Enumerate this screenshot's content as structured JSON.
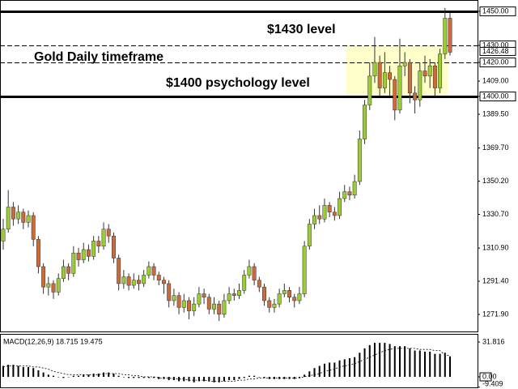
{
  "chart_data": [
    {
      "type": "candlestick",
      "open": [
        1315,
        1322,
        1335,
        1328,
        1332,
        1326,
        1330,
        1316,
        1300,
        1288,
        1290,
        1285,
        1293,
        1300,
        1296,
        1308,
        1304,
        1310,
        1306,
        1315,
        1312,
        1322,
        1318,
        1305,
        1290,
        1294,
        1289,
        1292,
        1290,
        1295,
        1300,
        1295,
        1292,
        1290,
        1280,
        1283,
        1276,
        1280,
        1274,
        1278,
        1284,
        1282,
        1275,
        1278,
        1272,
        1280,
        1284,
        1283,
        1286,
        1295,
        1300,
        1292,
        1288,
        1280,
        1276,
        1278,
        1284,
        1286,
        1282,
        1280,
        1284,
        1312,
        1325,
        1330,
        1328,
        1336,
        1332,
        1330,
        1340,
        1344,
        1342,
        1350,
        1375,
        1395,
        1412,
        1420,
        1405,
        1414,
        1410,
        1392,
        1418,
        1420,
        1402,
        1398,
        1415,
        1412,
        1418,
        1405,
        1425,
        1446
      ],
      "high": [
        1328,
        1345,
        1338,
        1336,
        1334,
        1333,
        1332,
        1318,
        1302,
        1294,
        1292,
        1296,
        1304,
        1302,
        1312,
        1311,
        1314,
        1313,
        1318,
        1318,
        1326,
        1325,
        1320,
        1307,
        1298,
        1296,
        1296,
        1295,
        1298,
        1303,
        1302,
        1297,
        1294,
        1292,
        1287,
        1285,
        1284,
        1282,
        1282,
        1288,
        1287,
        1284,
        1282,
        1280,
        1284,
        1288,
        1287,
        1290,
        1298,
        1304,
        1302,
        1294,
        1290,
        1282,
        1281,
        1287,
        1290,
        1288,
        1284,
        1288,
        1315,
        1328,
        1334,
        1336,
        1340,
        1338,
        1335,
        1344,
        1348,
        1347,
        1354,
        1380,
        1398,
        1420,
        1435,
        1424,
        1426,
        1418,
        1412,
        1434,
        1426,
        1422,
        1406,
        1420,
        1424,
        1422,
        1420,
        1428,
        1452,
        1449
      ],
      "low": [
        1310,
        1320,
        1324,
        1325,
        1322,
        1323,
        1312,
        1296,
        1284,
        1283,
        1281,
        1283,
        1291,
        1292,
        1294,
        1300,
        1302,
        1303,
        1304,
        1308,
        1310,
        1314,
        1302,
        1286,
        1287,
        1286,
        1287,
        1286,
        1288,
        1293,
        1292,
        1289,
        1284,
        1276,
        1277,
        1272,
        1273,
        1269,
        1271,
        1276,
        1278,
        1272,
        1272,
        1268,
        1270,
        1278,
        1280,
        1281,
        1284,
        1293,
        1289,
        1285,
        1277,
        1273,
        1273,
        1276,
        1282,
        1279,
        1276,
        1278,
        1282,
        1310,
        1322,
        1325,
        1326,
        1329,
        1327,
        1328,
        1338,
        1339,
        1340,
        1348,
        1372,
        1392,
        1408,
        1400,
        1402,
        1400,
        1386,
        1390,
        1412,
        1396,
        1390,
        1394,
        1408,
        1405,
        1400,
        1402,
        1422,
        1424
      ],
      "close": [
        1322,
        1335,
        1328,
        1332,
        1326,
        1330,
        1316,
        1300,
        1288,
        1290,
        1285,
        1293,
        1300,
        1296,
        1308,
        1304,
        1310,
        1306,
        1315,
        1312,
        1322,
        1318,
        1305,
        1290,
        1294,
        1289,
        1292,
        1290,
        1295,
        1300,
        1295,
        1292,
        1290,
        1280,
        1283,
        1276,
        1280,
        1274,
        1278,
        1284,
        1282,
        1275,
        1278,
        1272,
        1280,
        1284,
        1283,
        1286,
        1295,
        1300,
        1292,
        1288,
        1280,
        1276,
        1278,
        1284,
        1286,
        1282,
        1280,
        1284,
        1312,
        1325,
        1330,
        1328,
        1336,
        1332,
        1330,
        1340,
        1344,
        1342,
        1350,
        1375,
        1395,
        1412,
        1420,
        1405,
        1414,
        1410,
        1392,
        1418,
        1420,
        1402,
        1398,
        1415,
        1412,
        1418,
        1405,
        1425,
        1446,
        1426
      ],
      "up_color": "#9acd32",
      "down_color": "#cd6a3a",
      "wick_color": "#333333",
      "ylim": [
        1261.4,
        1456.7
      ],
      "yticks": [
        {
          "value": 1450,
          "label": "1450.00"
        },
        {
          "value": 1430,
          "label": "1430.00"
        },
        {
          "value": 1420,
          "label": "1420.00"
        },
        {
          "value": 1409,
          "label": "1409.00"
        },
        {
          "value": 1400,
          "label": "1400.00"
        },
        {
          "value": 1389.5,
          "label": "1389.50"
        },
        {
          "value": 1369.7,
          "label": "1369.70"
        },
        {
          "value": 1350.2,
          "label": "1350.20"
        },
        {
          "value": 1330.7,
          "label": "1330.70"
        },
        {
          "value": 1310.9,
          "label": "1310.90"
        },
        {
          "value": 1291.4,
          "label": "1291.40"
        },
        {
          "value": 1271.9,
          "label": "1271.90"
        }
      ],
      "last_price": {
        "value": 1426.48,
        "label": "1426.48"
      },
      "levels": [
        {
          "value": 1450,
          "style": "solid"
        },
        {
          "value": 1430,
          "style": "dashed"
        },
        {
          "value": 1420,
          "style": "dashed"
        },
        {
          "value": 1400,
          "style": "solid"
        }
      ],
      "zone": {
        "low": 1400,
        "high": 1430,
        "color": "#ffffcc"
      },
      "annotations": [
        "$1430 level",
        "Gold Daily timeframe",
        "$1400 psychology level"
      ]
    },
    {
      "type": "macd",
      "title": "MACD(12,26,9) 18.715 19.475",
      "histogram": [
        10,
        11,
        11,
        10,
        9,
        9,
        8,
        6,
        4,
        2,
        1,
        0,
        -1,
        0,
        1,
        1,
        2,
        2,
        3,
        3,
        4,
        4,
        3,
        1,
        0,
        -1,
        -1,
        -1,
        -1,
        -1,
        -1,
        -2,
        -2,
        -3,
        -3,
        -4,
        -4,
        -4,
        -5,
        -4,
        -4,
        -4,
        -5,
        -5,
        -4,
        -3,
        -3,
        -2,
        -1,
        1,
        1,
        0,
        -1,
        -2,
        -2,
        -2,
        -2,
        -2,
        -2,
        -1,
        2,
        5,
        8,
        10,
        12,
        13,
        13,
        15,
        16,
        17,
        18,
        22,
        26,
        29,
        31,
        31,
        31,
        30,
        28,
        28,
        28,
        26,
        24,
        24,
        23,
        23,
        21,
        21,
        22,
        18.715
      ],
      "signal": [
        9,
        10,
        10,
        10,
        10,
        10,
        9,
        9,
        8,
        7,
        5,
        4,
        3,
        2,
        2,
        2,
        2,
        2,
        2,
        2,
        3,
        3,
        3,
        3,
        2,
        2,
        1,
        1,
        0,
        0,
        0,
        -1,
        -1,
        -1,
        -2,
        -2,
        -2,
        -3,
        -3,
        -3,
        -3,
        -4,
        -4,
        -4,
        -4,
        -4,
        -4,
        -3,
        -3,
        -2,
        -2,
        -1,
        -1,
        -1,
        -1,
        -1,
        -1,
        -1,
        -1,
        -1,
        0,
        1,
        2,
        3,
        5,
        6,
        7,
        9,
        10,
        11,
        12,
        14,
        16,
        18,
        20,
        22,
        24,
        25,
        26,
        26,
        26,
        26,
        26,
        25,
        25,
        25,
        24,
        24,
        20,
        19.475
      ],
      "color": "#000000",
      "ylim": [
        -9.6,
        39.2
      ],
      "yticks": [
        31.816,
        {
          "value": 0,
          "label": "0.00"
        },
        -9.409
      ]
    }
  ]
}
